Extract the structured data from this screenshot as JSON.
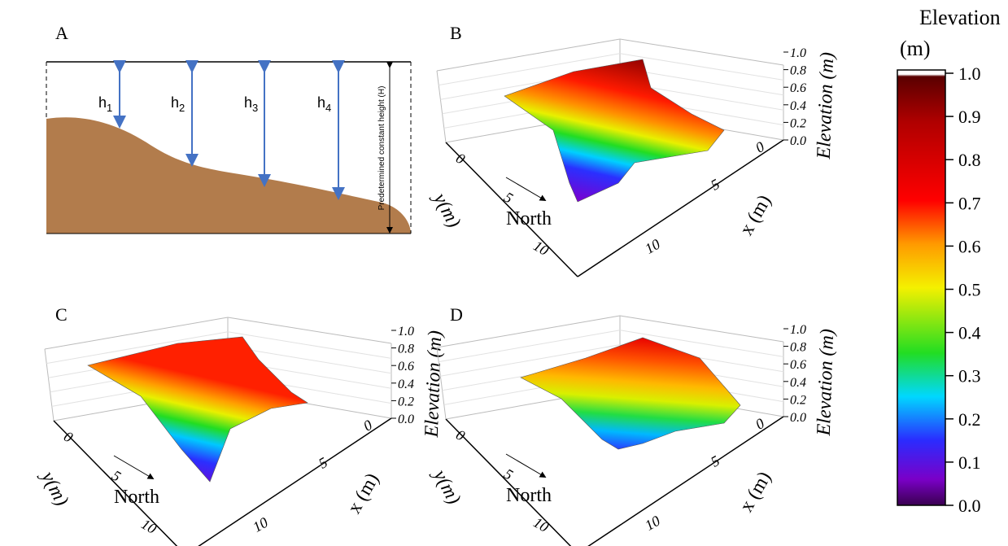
{
  "panels": [
    {
      "label": "A",
      "heights": [
        {
          "text": "h",
          "sub": "1"
        },
        {
          "text": "h",
          "sub": "2"
        },
        {
          "text": "h",
          "sub": "3"
        },
        {
          "text": "h",
          "sub": "4"
        }
      ],
      "constant_height_label": "Predetermined constant height (H)"
    },
    {
      "label": "B",
      "z_label": "Elevation (m)",
      "x_label": "x (m)",
      "y_label": "y(m)",
      "direction": "North",
      "z_ticks": [
        {
          "value": 0,
          "label": "0.0"
        },
        {
          "value": 0.2,
          "label": "0.2"
        },
        {
          "value": 0.4,
          "label": "0.4"
        },
        {
          "value": 0.6,
          "label": "0.6"
        },
        {
          "value": 0.8,
          "label": "0.8"
        },
        {
          "value": 1,
          "label": "1.0"
        }
      ],
      "x_ticks": [
        0,
        5,
        10
      ],
      "y_ticks": [
        0,
        5,
        10
      ]
    },
    {
      "label": "C",
      "z_label": "Elevation (m)",
      "x_label": "x (m)",
      "y_label": "y(m)",
      "direction": "North",
      "z_ticks": [
        {
          "value": 0,
          "label": "0.0"
        },
        {
          "value": 0.2,
          "label": "0.2"
        },
        {
          "value": 0.4,
          "label": "0.4"
        },
        {
          "value": 0.6,
          "label": "0.6"
        },
        {
          "value": 0.8,
          "label": "0.8"
        },
        {
          "value": 1,
          "label": "1.0"
        }
      ],
      "x_ticks": [
        0,
        5,
        10
      ],
      "y_ticks": [
        0,
        5,
        10
      ]
    },
    {
      "label": "D",
      "z_label": "Elevation (m)",
      "x_label": "x (m)",
      "y_label": "y(m)",
      "direction": "North",
      "z_ticks": [
        {
          "value": 0,
          "label": "0.0"
        },
        {
          "value": 0.2,
          "label": "0.2"
        },
        {
          "value": 0.4,
          "label": "0.4"
        },
        {
          "value": 0.6,
          "label": "0.6"
        },
        {
          "value": 0.8,
          "label": "0.8"
        },
        {
          "value": 1,
          "label": "1.0"
        }
      ],
      "x_ticks": [
        0,
        5,
        10
      ],
      "y_ticks": [
        0,
        5,
        10
      ]
    }
  ],
  "colorbar": {
    "title": [
      "Elevation",
      "(m)"
    ],
    "lim": [
      0,
      1
    ],
    "ticks": [
      {
        "value": 0,
        "label": "0.0"
      },
      {
        "value": 0.1,
        "label": "0.1"
      },
      {
        "value": 0.2,
        "label": "0.2"
      },
      {
        "value": 0.3,
        "label": "0.3"
      },
      {
        "value": 0.4,
        "label": "0.4"
      },
      {
        "value": 0.5,
        "label": "0.5"
      },
      {
        "value": 0.6,
        "label": "0.6"
      },
      {
        "value": 0.7,
        "label": "0.7"
      },
      {
        "value": 0.8,
        "label": "0.8"
      },
      {
        "value": 0.9,
        "label": "0.9"
      },
      {
        "value": 1,
        "label": "1.0"
      }
    ]
  }
}
